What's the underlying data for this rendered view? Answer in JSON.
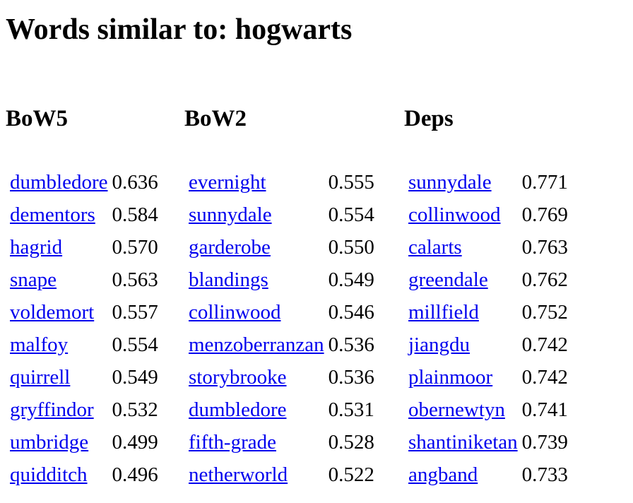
{
  "page": {
    "title": "Words similar to: hogwarts"
  },
  "columns": [
    {
      "heading": "BoW5",
      "rows": [
        {
          "word": "dumbledore",
          "score": "0.636"
        },
        {
          "word": "dementors",
          "score": "0.584"
        },
        {
          "word": "hagrid",
          "score": "0.570"
        },
        {
          "word": "snape",
          "score": "0.563"
        },
        {
          "word": "voldemort",
          "score": "0.557"
        },
        {
          "word": "malfoy",
          "score": "0.554"
        },
        {
          "word": "quirrell",
          "score": "0.549"
        },
        {
          "word": "gryffindor",
          "score": "0.532"
        },
        {
          "word": "umbridge",
          "score": "0.499"
        },
        {
          "word": "quidditch",
          "score": "0.496"
        }
      ]
    },
    {
      "heading": "BoW2",
      "rows": [
        {
          "word": "evernight",
          "score": "0.555"
        },
        {
          "word": "sunnydale",
          "score": "0.554"
        },
        {
          "word": "garderobe",
          "score": "0.550"
        },
        {
          "word": "blandings",
          "score": "0.549"
        },
        {
          "word": "collinwood",
          "score": "0.546"
        },
        {
          "word": "menzoberranzan",
          "score": "0.536"
        },
        {
          "word": "storybrooke",
          "score": "0.536"
        },
        {
          "word": "dumbledore",
          "score": "0.531"
        },
        {
          "word": "fifth-grade",
          "score": "0.528"
        },
        {
          "word": "netherworld",
          "score": "0.522"
        }
      ]
    },
    {
      "heading": "Deps",
      "rows": [
        {
          "word": "sunnydale",
          "score": "0.771"
        },
        {
          "word": "collinwood",
          "score": "0.769"
        },
        {
          "word": "calarts",
          "score": "0.763"
        },
        {
          "word": "greendale",
          "score": "0.762"
        },
        {
          "word": "millfield",
          "score": "0.752"
        },
        {
          "word": "jiangdu",
          "score": "0.742"
        },
        {
          "word": "plainmoor",
          "score": "0.742"
        },
        {
          "word": "obernewtyn",
          "score": "0.741"
        },
        {
          "word": "shantiniketan",
          "score": "0.739"
        },
        {
          "word": "angband",
          "score": "0.733"
        }
      ]
    }
  ],
  "colors": {
    "link": "#0000ee",
    "text": "#000000",
    "background": "#ffffff"
  }
}
